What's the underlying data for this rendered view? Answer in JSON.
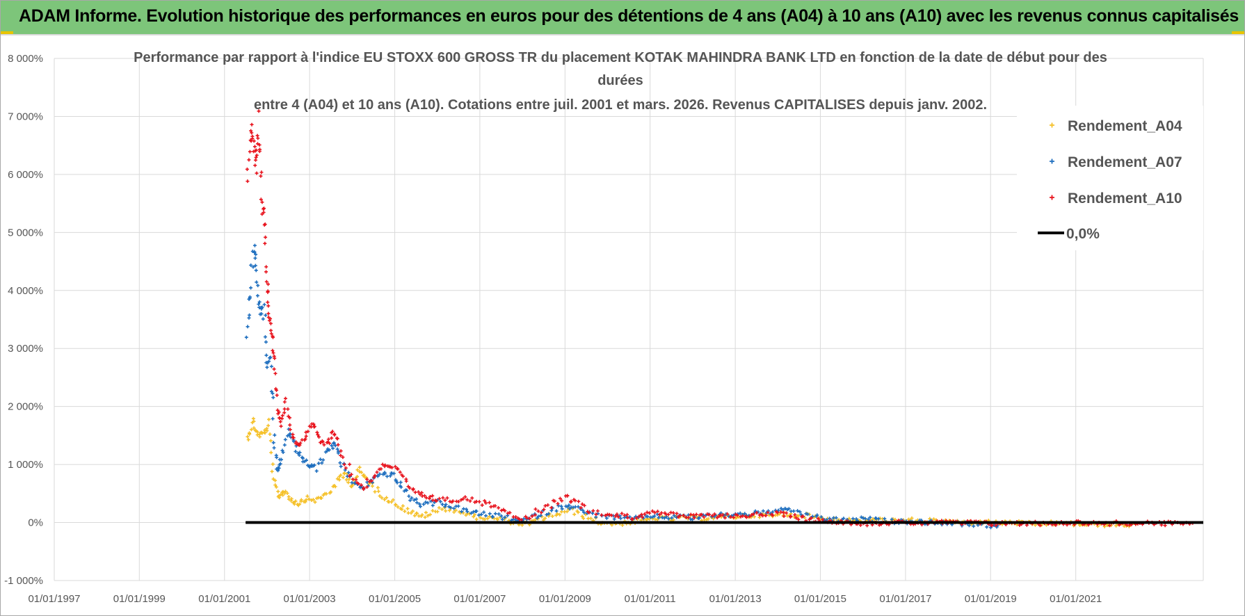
{
  "header": {
    "title": "ADAM Informe. Evolution historique des performances en euros pour des détentions de 4 ans (A04) à 10 ans (A10) avec les revenus connus capitalisés"
  },
  "chart_data": {
    "type": "scatter",
    "title_lines": [
      "Performance par rapport à l'indice EU STOXX 600 GROSS TR  du placement KOTAK MAHINDRA BANK LTD en fonction de la date de début pour des",
      "durées",
      "entre 4 (A04) et 10 ans (A10).  Cotations entre juil. 2001 et mars. 2026. Revenus CAPITALISES depuis janv. 2002."
    ],
    "xlabel": "",
    "ylabel": "",
    "x_range": [
      "1997-01-01",
      "2023-12-31"
    ],
    "ylim": [
      -1000,
      8000
    ],
    "y_ticks": [
      {
        "value": 8000,
        "label": "8 000%"
      },
      {
        "value": 7000,
        "label": "7 000%"
      },
      {
        "value": 6000,
        "label": "6 000%"
      },
      {
        "value": 5000,
        "label": "5 000%"
      },
      {
        "value": 4000,
        "label": "4 000%"
      },
      {
        "value": 3000,
        "label": "3 000%"
      },
      {
        "value": 2000,
        "label": "2 000%"
      },
      {
        "value": 1000,
        "label": "1 000%"
      },
      {
        "value": 0,
        "label": "0%"
      },
      {
        "value": -1000,
        "label": "-1 000%"
      }
    ],
    "x_ticks": [
      {
        "value": "1997-01-01",
        "label": "01/01/1997"
      },
      {
        "value": "1999-01-01",
        "label": "01/01/1999"
      },
      {
        "value": "2001-01-01",
        "label": "01/01/2001"
      },
      {
        "value": "2003-01-01",
        "label": "01/01/2003"
      },
      {
        "value": "2005-01-01",
        "label": "01/01/2005"
      },
      {
        "value": "2007-01-01",
        "label": "01/01/2007"
      },
      {
        "value": "2009-01-01",
        "label": "01/01/2009"
      },
      {
        "value": "2011-01-01",
        "label": "01/01/2011"
      },
      {
        "value": "2013-01-01",
        "label": "01/01/2013"
      },
      {
        "value": "2015-01-01",
        "label": "01/01/2015"
      },
      {
        "value": "2017-01-01",
        "label": "01/01/2017"
      },
      {
        "value": "2019-01-01",
        "label": "01/01/2019"
      },
      {
        "value": "2021-01-01",
        "label": "01/01/2021"
      }
    ],
    "grid": true,
    "legend_position": "top-right",
    "series": [
      {
        "name": "Rendement_A04",
        "color": "#f5c12a",
        "points": [
          [
            "2001-07-15",
            1450
          ],
          [
            "2001-09-01",
            1750
          ],
          [
            "2001-10-15",
            1500
          ],
          [
            "2001-12-01",
            1550
          ],
          [
            "2002-01-15",
            1650
          ],
          [
            "2002-03-01",
            700
          ],
          [
            "2002-04-15",
            450
          ],
          [
            "2002-06-01",
            550
          ],
          [
            "2002-08-01",
            380
          ],
          [
            "2002-10-01",
            330
          ],
          [
            "2002-12-01",
            420
          ],
          [
            "2003-03-01",
            380
          ],
          [
            "2003-06-01",
            500
          ],
          [
            "2003-09-01",
            700
          ],
          [
            "2003-11-01",
            850
          ],
          [
            "2004-01-01",
            650
          ],
          [
            "2004-03-01",
            900
          ],
          [
            "2004-05-01",
            750
          ],
          [
            "2004-08-01",
            550
          ],
          [
            "2004-11-01",
            400
          ],
          [
            "2005-02-01",
            300
          ],
          [
            "2005-05-01",
            200
          ],
          [
            "2005-08-01",
            100
          ],
          [
            "2005-11-01",
            150
          ],
          [
            "2006-03-01",
            250
          ],
          [
            "2006-07-01",
            200
          ],
          [
            "2006-11-01",
            100
          ],
          [
            "2007-03-01",
            80
          ],
          [
            "2007-07-01",
            60
          ],
          [
            "2007-11-01",
            0
          ],
          [
            "2008-03-01",
            -30
          ],
          [
            "2008-07-01",
            80
          ],
          [
            "2008-11-01",
            150
          ],
          [
            "2009-03-01",
            200
          ],
          [
            "2009-07-01",
            100
          ],
          [
            "2009-11-01",
            0
          ],
          [
            "2010-03-01",
            -20
          ],
          [
            "2010-07-01",
            0
          ],
          [
            "2010-11-01",
            30
          ],
          [
            "2011-03-01",
            80
          ],
          [
            "2011-07-01",
            60
          ],
          [
            "2011-11-01",
            90
          ],
          [
            "2012-03-01",
            70
          ],
          [
            "2012-07-01",
            90
          ],
          [
            "2012-11-01",
            100
          ],
          [
            "2013-03-01",
            110
          ],
          [
            "2013-07-01",
            130
          ],
          [
            "2013-11-01",
            110
          ],
          [
            "2014-03-01",
            140
          ],
          [
            "2014-07-01",
            130
          ],
          [
            "2014-11-01",
            100
          ],
          [
            "2015-03-01",
            60
          ],
          [
            "2015-07-01",
            40
          ],
          [
            "2015-11-01",
            30
          ],
          [
            "2016-03-01",
            50
          ],
          [
            "2016-07-01",
            40
          ],
          [
            "2016-11-01",
            20
          ],
          [
            "2017-03-01",
            40
          ],
          [
            "2017-07-01",
            30
          ],
          [
            "2017-11-01",
            20
          ],
          [
            "2018-03-01",
            10
          ],
          [
            "2018-07-01",
            0
          ],
          [
            "2018-11-01",
            10
          ],
          [
            "2019-03-01",
            -10
          ],
          [
            "2019-07-01",
            0
          ],
          [
            "2019-11-01",
            -20
          ],
          [
            "2020-03-01",
            -30
          ],
          [
            "2020-07-01",
            -10
          ],
          [
            "2020-11-01",
            -20
          ],
          [
            "2021-03-01",
            -30
          ],
          [
            "2021-07-01",
            -40
          ],
          [
            "2021-11-01",
            -30
          ],
          [
            "2022-03-01",
            -40
          ],
          [
            "2022-06-01",
            -30
          ]
        ]
      },
      {
        "name": "Rendement_A07",
        "color": "#1f6fbf",
        "points": [
          [
            "2001-07-15",
            3200
          ],
          [
            "2001-08-15",
            4000
          ],
          [
            "2001-09-10",
            4900
          ],
          [
            "2001-10-01",
            4100
          ],
          [
            "2001-11-01",
            3600
          ],
          [
            "2001-12-01",
            3800
          ],
          [
            "2002-01-01",
            2700
          ],
          [
            "2002-02-01",
            2900
          ],
          [
            "2002-03-01",
            1500
          ],
          [
            "2002-04-01",
            900
          ],
          [
            "2002-05-01",
            1100
          ],
          [
            "2002-07-01",
            1600
          ],
          [
            "2002-09-01",
            1300
          ],
          [
            "2002-11-01",
            1100
          ],
          [
            "2003-01-01",
            1000
          ],
          [
            "2003-03-01",
            950
          ],
          [
            "2003-06-01",
            1200
          ],
          [
            "2003-08-01",
            1400
          ],
          [
            "2003-10-01",
            1000
          ],
          [
            "2004-01-01",
            700
          ],
          [
            "2004-04-01",
            600
          ],
          [
            "2004-07-01",
            750
          ],
          [
            "2004-10-01",
            850
          ],
          [
            "2005-01-01",
            800
          ],
          [
            "2005-03-01",
            600
          ],
          [
            "2005-06-01",
            400
          ],
          [
            "2005-09-01",
            300
          ],
          [
            "2006-01-01",
            350
          ],
          [
            "2006-05-01",
            280
          ],
          [
            "2006-09-01",
            200
          ],
          [
            "2007-01-01",
            150
          ],
          [
            "2007-05-01",
            120
          ],
          [
            "2007-09-01",
            80
          ],
          [
            "2008-01-01",
            20
          ],
          [
            "2008-05-01",
            120
          ],
          [
            "2008-09-01",
            200
          ],
          [
            "2009-01-01",
            300
          ],
          [
            "2009-04-01",
            250
          ],
          [
            "2009-08-01",
            150
          ],
          [
            "2010-01-01",
            100
          ],
          [
            "2010-05-01",
            80
          ],
          [
            "2010-09-01",
            60
          ],
          [
            "2011-01-01",
            120
          ],
          [
            "2011-05-01",
            90
          ],
          [
            "2011-09-01",
            110
          ],
          [
            "2012-01-01",
            80
          ],
          [
            "2012-05-01",
            120
          ],
          [
            "2012-09-01",
            130
          ],
          [
            "2013-01-01",
            140
          ],
          [
            "2013-05-01",
            150
          ],
          [
            "2013-09-01",
            170
          ],
          [
            "2014-01-01",
            200
          ],
          [
            "2014-05-01",
            220
          ],
          [
            "2014-09-01",
            120
          ],
          [
            "2015-01-01",
            80
          ],
          [
            "2015-05-01",
            50
          ],
          [
            "2015-09-01",
            40
          ],
          [
            "2016-01-01",
            60
          ],
          [
            "2016-05-01",
            40
          ],
          [
            "2016-09-01",
            20
          ],
          [
            "2017-01-01",
            20
          ],
          [
            "2017-05-01",
            10
          ],
          [
            "2017-09-01",
            0
          ],
          [
            "2018-01-01",
            -10
          ],
          [
            "2018-05-01",
            -20
          ],
          [
            "2018-09-01",
            -30
          ],
          [
            "2019-01-01",
            -60
          ],
          [
            "2019-03-01",
            -50
          ]
        ]
      },
      {
        "name": "Rendement_A10",
        "color": "#e8141e",
        "points": [
          [
            "2001-07-15",
            6000
          ],
          [
            "2001-08-15",
            6800
          ],
          [
            "2001-09-10",
            6500
          ],
          [
            "2001-10-01",
            6100
          ],
          [
            "2001-10-20",
            6900
          ],
          [
            "2001-11-15",
            5600
          ],
          [
            "2001-12-10",
            5200
          ],
          [
            "2002-01-01",
            4200
          ],
          [
            "2002-01-20",
            3600
          ],
          [
            "2002-02-10",
            3300
          ],
          [
            "2002-03-01",
            2800
          ],
          [
            "2002-04-01",
            2000
          ],
          [
            "2002-05-01",
            1700
          ],
          [
            "2002-06-15",
            2100
          ],
          [
            "2002-08-01",
            1500
          ],
          [
            "2002-10-01",
            1350
          ],
          [
            "2002-12-01",
            1500
          ],
          [
            "2003-02-01",
            1700
          ],
          [
            "2003-04-01",
            1400
          ],
          [
            "2003-06-01",
            1350
          ],
          [
            "2003-08-01",
            1600
          ],
          [
            "2003-10-01",
            1200
          ],
          [
            "2004-01-01",
            800
          ],
          [
            "2004-04-01",
            600
          ],
          [
            "2004-07-01",
            800
          ],
          [
            "2004-10-01",
            1000
          ],
          [
            "2005-01-01",
            950
          ],
          [
            "2005-04-01",
            700
          ],
          [
            "2005-07-01",
            500
          ],
          [
            "2005-10-01",
            450
          ],
          [
            "2006-01-01",
            400
          ],
          [
            "2006-05-01",
            380
          ],
          [
            "2006-09-01",
            420
          ],
          [
            "2007-01-01",
            350
          ],
          [
            "2007-05-01",
            300
          ],
          [
            "2007-09-01",
            200
          ],
          [
            "2008-01-01",
            50
          ],
          [
            "2008-05-01",
            180
          ],
          [
            "2008-09-01",
            300
          ],
          [
            "2009-01-01",
            450
          ],
          [
            "2009-04-01",
            350
          ],
          [
            "2009-08-01",
            200
          ],
          [
            "2010-01-01",
            150
          ],
          [
            "2010-05-01",
            120
          ],
          [
            "2010-09-01",
            80
          ],
          [
            "2011-01-01",
            200
          ],
          [
            "2011-05-01",
            150
          ],
          [
            "2011-09-01",
            120
          ],
          [
            "2012-01-01",
            100
          ],
          [
            "2012-05-01",
            110
          ],
          [
            "2012-09-01",
            120
          ],
          [
            "2013-01-01",
            110
          ],
          [
            "2013-05-01",
            130
          ],
          [
            "2013-09-01",
            140
          ],
          [
            "2014-01-01",
            150
          ],
          [
            "2014-05-01",
            130
          ],
          [
            "2014-09-01",
            60
          ],
          [
            "2015-01-01",
            30
          ],
          [
            "2015-05-01",
            20
          ],
          [
            "2015-09-01",
            10
          ],
          [
            "2016-01-01",
            -20
          ],
          [
            "2016-05-01",
            -10
          ],
          [
            "2016-09-01",
            0
          ],
          [
            "2017-01-01",
            0
          ],
          [
            "2017-05-01",
            -10
          ],
          [
            "2017-09-01",
            10
          ],
          [
            "2018-01-01",
            0
          ],
          [
            "2018-05-01",
            -10
          ],
          [
            "2018-09-01",
            0
          ],
          [
            "2019-01-01",
            -20
          ],
          [
            "2019-05-01",
            -10
          ],
          [
            "2019-09-01",
            -20
          ],
          [
            "2020-01-01",
            -10
          ],
          [
            "2020-05-01",
            -20
          ],
          [
            "2020-09-01",
            -10
          ],
          [
            "2021-01-01",
            0
          ],
          [
            "2021-05-01",
            -10
          ],
          [
            "2021-09-01",
            -20
          ],
          [
            "2022-01-01",
            -10
          ],
          [
            "2022-05-01",
            -20
          ],
          [
            "2022-09-01",
            -10
          ],
          [
            "2023-01-01",
            -20
          ],
          [
            "2023-05-01",
            -10
          ],
          [
            "2023-10-01",
            -10
          ]
        ]
      }
    ],
    "reference_line": {
      "name": "0,0%",
      "value": 0,
      "x_start": "2001-07-01",
      "x_end": "2023-12-31",
      "color": "#000000"
    }
  }
}
